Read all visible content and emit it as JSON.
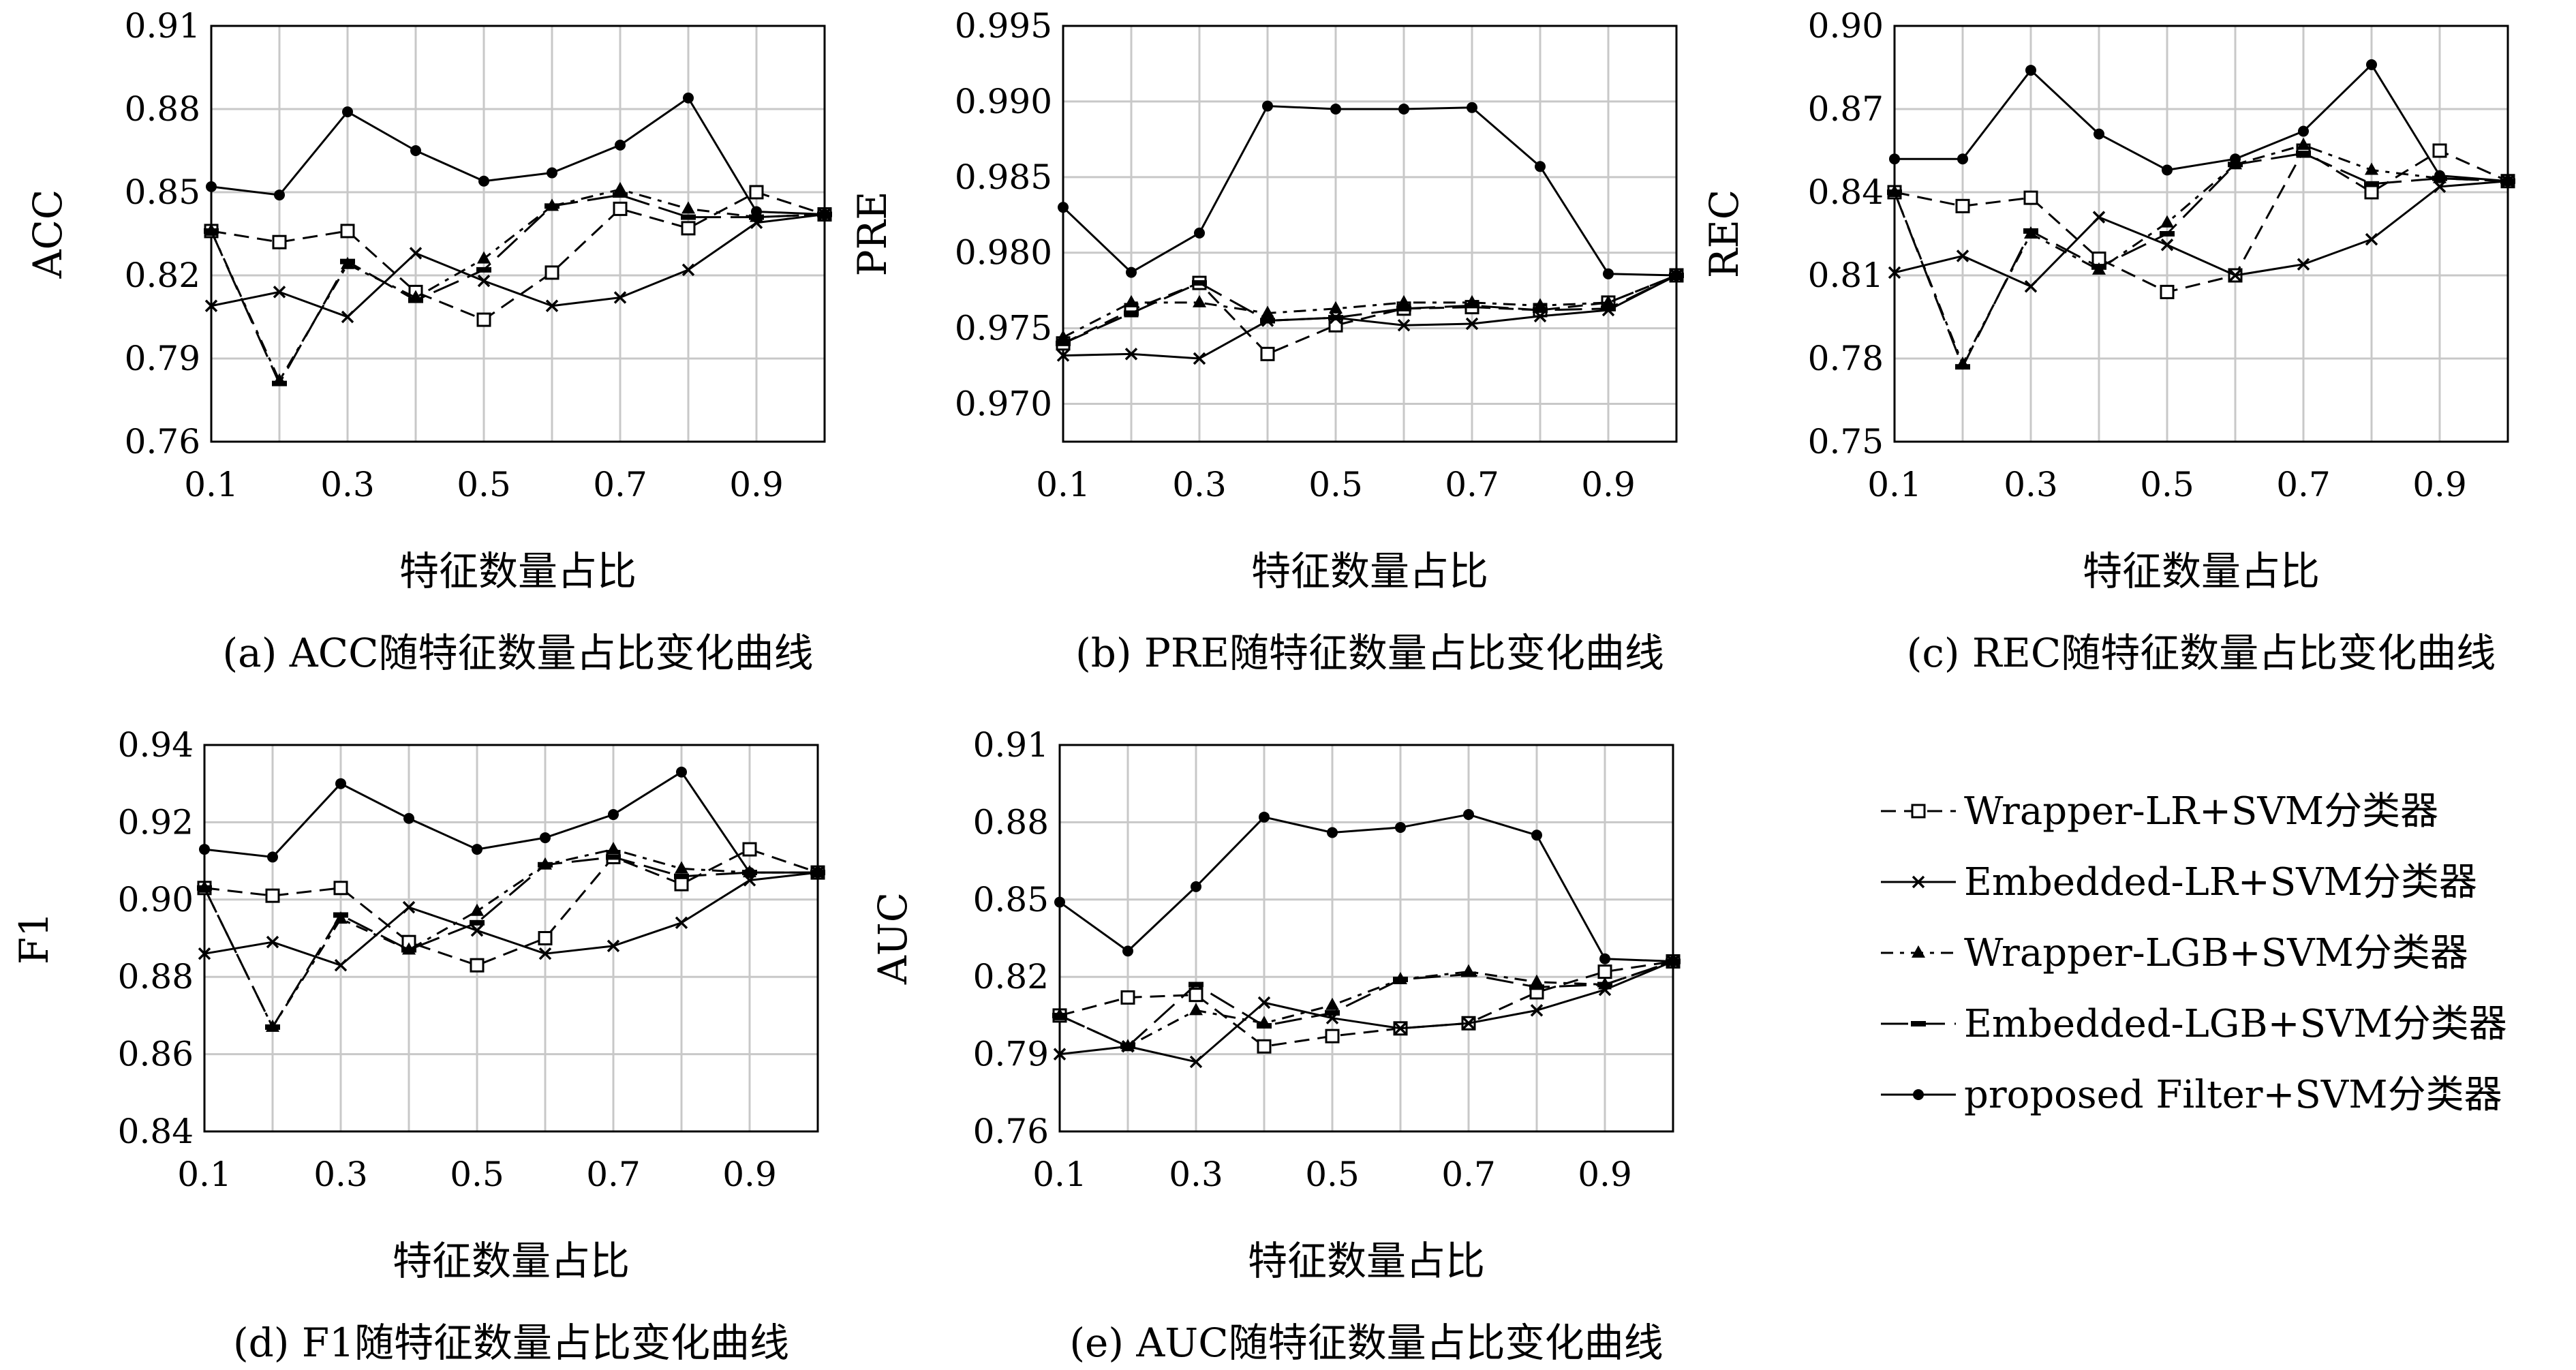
{
  "series_styles": [
    {
      "name": "Wrapper-LR+SVM分类器",
      "dash": "22,12",
      "marker": "square-open"
    },
    {
      "name": "Embedded-LR+SVM分类器",
      "dash": "",
      "marker": "x"
    },
    {
      "name": "Wrapper-LGB+SVM分类器",
      "dash": "18,10,6,10",
      "marker": "triangle"
    },
    {
      "name": "Embedded-LGB+SVM分类器",
      "dash": "40,14",
      "marker": "square-filled"
    },
    {
      "name": "proposed Filter+SVM分类器",
      "dash": "",
      "marker": "circle"
    }
  ],
  "chart_data": [
    {
      "type": "line",
      "ylabel": "ACC",
      "xlabel": "特征数量占比",
      "caption": "(a) ACC随特征数量占比变化曲线",
      "x": [
        0.1,
        0.2,
        0.3,
        0.4,
        0.5,
        0.6,
        0.7,
        0.8,
        0.9,
        1.0
      ],
      "xticks": [
        "0.1",
        "0.3",
        "0.5",
        "0.7",
        "0.9"
      ],
      "xtick_values": [
        0.1,
        0.3,
        0.5,
        0.7,
        0.9
      ],
      "ylim": [
        0.76,
        0.91
      ],
      "yticks": [
        "0.76",
        "0.79",
        "0.82",
        "0.85",
        "0.88",
        "0.91"
      ],
      "ytick_values": [
        0.76,
        0.79,
        0.82,
        0.85,
        0.88,
        0.91
      ],
      "grid": true,
      "series": [
        {
          "name": "Wrapper-LR+SVM分类器",
          "values": [
            0.836,
            0.832,
            0.836,
            0.814,
            0.804,
            0.821,
            0.844,
            0.837,
            0.85,
            0.842
          ]
        },
        {
          "name": "Embedded-LR+SVM分类器",
          "values": [
            0.809,
            0.814,
            0.805,
            0.828,
            0.818,
            0.809,
            0.812,
            0.822,
            0.839,
            0.842
          ]
        },
        {
          "name": "Wrapper-LGB+SVM分类器",
          "values": [
            0.836,
            0.782,
            0.824,
            0.812,
            0.826,
            0.845,
            0.851,
            0.844,
            0.841,
            0.842
          ]
        },
        {
          "name": "Embedded-LGB+SVM分类器",
          "values": [
            0.836,
            0.781,
            0.825,
            0.811,
            0.822,
            0.845,
            0.849,
            0.841,
            0.841,
            0.842
          ]
        },
        {
          "name": "proposed Filter+SVM分类器",
          "values": [
            0.852,
            0.849,
            0.879,
            0.865,
            0.854,
            0.857,
            0.867,
            0.884,
            0.843,
            0.842
          ]
        }
      ]
    },
    {
      "type": "line",
      "ylabel": "PRE",
      "xlabel": "特征数量占比",
      "caption": "(b) PRE随特征数量占比变化曲线",
      "x": [
        0.1,
        0.2,
        0.3,
        0.4,
        0.5,
        0.6,
        0.7,
        0.8,
        0.9,
        1.0
      ],
      "xticks": [
        "0.1",
        "0.3",
        "0.5",
        "0.7",
        "0.9"
      ],
      "xtick_values": [
        0.1,
        0.3,
        0.5,
        0.7,
        0.9
      ],
      "ylim": [
        0.9675,
        0.995
      ],
      "yticks": [
        "0.970",
        "0.975",
        "0.980",
        "0.985",
        "0.990",
        "0.995"
      ],
      "ytick_values": [
        0.97,
        0.975,
        0.98,
        0.985,
        0.99,
        0.995
      ],
      "grid": true,
      "series": [
        {
          "name": "Wrapper-LR+SVM分类器",
          "values": [
            0.974,
            0.9762,
            0.978,
            0.9733,
            0.9752,
            0.9763,
            0.9764,
            0.9762,
            0.9767,
            0.9785
          ]
        },
        {
          "name": "Embedded-LR+SVM分类器",
          "values": [
            0.9732,
            0.9733,
            0.973,
            0.9755,
            0.9757,
            0.9752,
            0.9753,
            0.9758,
            0.9762,
            0.9785
          ]
        },
        {
          "name": "Wrapper-LGB+SVM分类器",
          "values": [
            0.9744,
            0.9767,
            0.9767,
            0.976,
            0.9763,
            0.9767,
            0.9767,
            0.9765,
            0.9767,
            0.9785
          ]
        },
        {
          "name": "Embedded-LGB+SVM分类器",
          "values": [
            0.974,
            0.976,
            0.978,
            0.9755,
            0.9757,
            0.9763,
            0.9765,
            0.9762,
            0.9763,
            0.9785
          ]
        },
        {
          "name": "proposed Filter+SVM分类器",
          "values": [
            0.983,
            0.9787,
            0.9813,
            0.9897,
            0.9895,
            0.9895,
            0.9896,
            0.9857,
            0.9786,
            0.9785
          ]
        }
      ]
    },
    {
      "type": "line",
      "ylabel": "REC",
      "xlabel": "特征数量占比",
      "caption": "(c) REC随特征数量占比变化曲线",
      "x": [
        0.1,
        0.2,
        0.3,
        0.4,
        0.5,
        0.6,
        0.7,
        0.8,
        0.9,
        1.0
      ],
      "xticks": [
        "0.1",
        "0.3",
        "0.5",
        "0.7",
        "0.9"
      ],
      "xtick_values": [
        0.1,
        0.3,
        0.5,
        0.7,
        0.9
      ],
      "ylim": [
        0.75,
        0.9
      ],
      "yticks": [
        "0.75",
        "0.78",
        "0.81",
        "0.84",
        "0.87",
        "0.90"
      ],
      "ytick_values": [
        0.75,
        0.78,
        0.81,
        0.84,
        0.87,
        0.9
      ],
      "grid": true,
      "series": [
        {
          "name": "Wrapper-LR+SVM分类器",
          "values": [
            0.84,
            0.835,
            0.838,
            0.816,
            0.804,
            0.81,
            0.855,
            0.84,
            0.855,
            0.844
          ]
        },
        {
          "name": "Embedded-LR+SVM分类器",
          "values": [
            0.811,
            0.817,
            0.806,
            0.831,
            0.821,
            0.81,
            0.814,
            0.823,
            0.842,
            0.844
          ]
        },
        {
          "name": "Wrapper-LGB+SVM分类器",
          "values": [
            0.84,
            0.778,
            0.825,
            0.812,
            0.829,
            0.85,
            0.857,
            0.848,
            0.845,
            0.844
          ]
        },
        {
          "name": "Embedded-LGB+SVM分类器",
          "values": [
            0.84,
            0.777,
            0.826,
            0.813,
            0.825,
            0.85,
            0.854,
            0.843,
            0.845,
            0.844
          ]
        },
        {
          "name": "proposed Filter+SVM分类器",
          "values": [
            0.852,
            0.852,
            0.884,
            0.861,
            0.848,
            0.852,
            0.862,
            0.886,
            0.846,
            0.844
          ]
        }
      ]
    },
    {
      "type": "line",
      "ylabel": "F1",
      "xlabel": "特征数量占比",
      "caption": "(d) F1随特征数量占比变化曲线",
      "x": [
        0.1,
        0.2,
        0.3,
        0.4,
        0.5,
        0.6,
        0.7,
        0.8,
        0.9,
        1.0
      ],
      "xticks": [
        "0.1",
        "0.3",
        "0.5",
        "0.7",
        "0.9"
      ],
      "xtick_values": [
        0.1,
        0.3,
        0.5,
        0.7,
        0.9
      ],
      "ylim": [
        0.84,
        0.94
      ],
      "yticks": [
        "0.84",
        "0.86",
        "0.88",
        "0.90",
        "0.92",
        "0.94"
      ],
      "ytick_values": [
        0.84,
        0.86,
        0.88,
        0.9,
        0.92,
        0.94
      ],
      "grid": true,
      "series": [
        {
          "name": "Wrapper-LR+SVM分类器",
          "values": [
            0.903,
            0.901,
            0.903,
            0.889,
            0.883,
            0.89,
            0.911,
            0.904,
            0.913,
            0.907
          ]
        },
        {
          "name": "Embedded-LR+SVM分类器",
          "values": [
            0.886,
            0.889,
            0.883,
            0.898,
            0.892,
            0.886,
            0.888,
            0.894,
            0.905,
            0.907
          ]
        },
        {
          "name": "Wrapper-LGB+SVM分类器",
          "values": [
            0.903,
            0.867,
            0.895,
            0.887,
            0.897,
            0.909,
            0.913,
            0.908,
            0.907,
            0.907
          ]
        },
        {
          "name": "Embedded-LGB+SVM分类器",
          "values": [
            0.903,
            0.867,
            0.896,
            0.887,
            0.894,
            0.909,
            0.911,
            0.906,
            0.907,
            0.907
          ]
        },
        {
          "name": "proposed Filter+SVM分类器",
          "values": [
            0.913,
            0.911,
            0.93,
            0.921,
            0.913,
            0.916,
            0.922,
            0.933,
            0.907,
            0.907
          ]
        }
      ]
    },
    {
      "type": "line",
      "ylabel": "AUC",
      "xlabel": "特征数量占比",
      "caption": "(e) AUC随特征数量占比变化曲线",
      "x": [
        0.1,
        0.2,
        0.3,
        0.4,
        0.5,
        0.6,
        0.7,
        0.8,
        0.9,
        1.0
      ],
      "xticks": [
        "0.1",
        "0.3",
        "0.5",
        "0.7",
        "0.9"
      ],
      "xtick_values": [
        0.1,
        0.3,
        0.5,
        0.7,
        0.9
      ],
      "ylim": [
        0.76,
        0.91
      ],
      "yticks": [
        "0.76",
        "0.79",
        "0.82",
        "0.85",
        "0.88",
        "0.91"
      ],
      "ytick_values": [
        0.76,
        0.79,
        0.82,
        0.85,
        0.88,
        0.91
      ],
      "grid": true,
      "series": [
        {
          "name": "Wrapper-LR+SVM分类器",
          "values": [
            0.805,
            0.812,
            0.813,
            0.793,
            0.797,
            0.8,
            0.802,
            0.814,
            0.822,
            0.826
          ]
        },
        {
          "name": "Embedded-LR+SVM分类器",
          "values": [
            0.79,
            0.793,
            0.787,
            0.81,
            0.804,
            0.8,
            0.802,
            0.807,
            0.815,
            0.826
          ]
        },
        {
          "name": "Wrapper-LGB+SVM分类器",
          "values": [
            0.805,
            0.793,
            0.807,
            0.802,
            0.809,
            0.819,
            0.822,
            0.818,
            0.817,
            0.826
          ]
        },
        {
          "name": "Embedded-LGB+SVM分类器",
          "values": [
            0.805,
            0.793,
            0.817,
            0.801,
            0.806,
            0.819,
            0.821,
            0.816,
            0.817,
            0.826
          ]
        },
        {
          "name": "proposed Filter+SVM分类器",
          "values": [
            0.849,
            0.83,
            0.855,
            0.882,
            0.876,
            0.878,
            0.883,
            0.875,
            0.827,
            0.826
          ]
        }
      ]
    }
  ],
  "legend": {
    "entries": [
      "Wrapper-LR+SVM分类器",
      "Embedded-LR+SVM分类器",
      "Wrapper-LGB+SVM分类器",
      "Embedded-LGB+SVM分类器",
      "proposed Filter+SVM分类器"
    ]
  }
}
